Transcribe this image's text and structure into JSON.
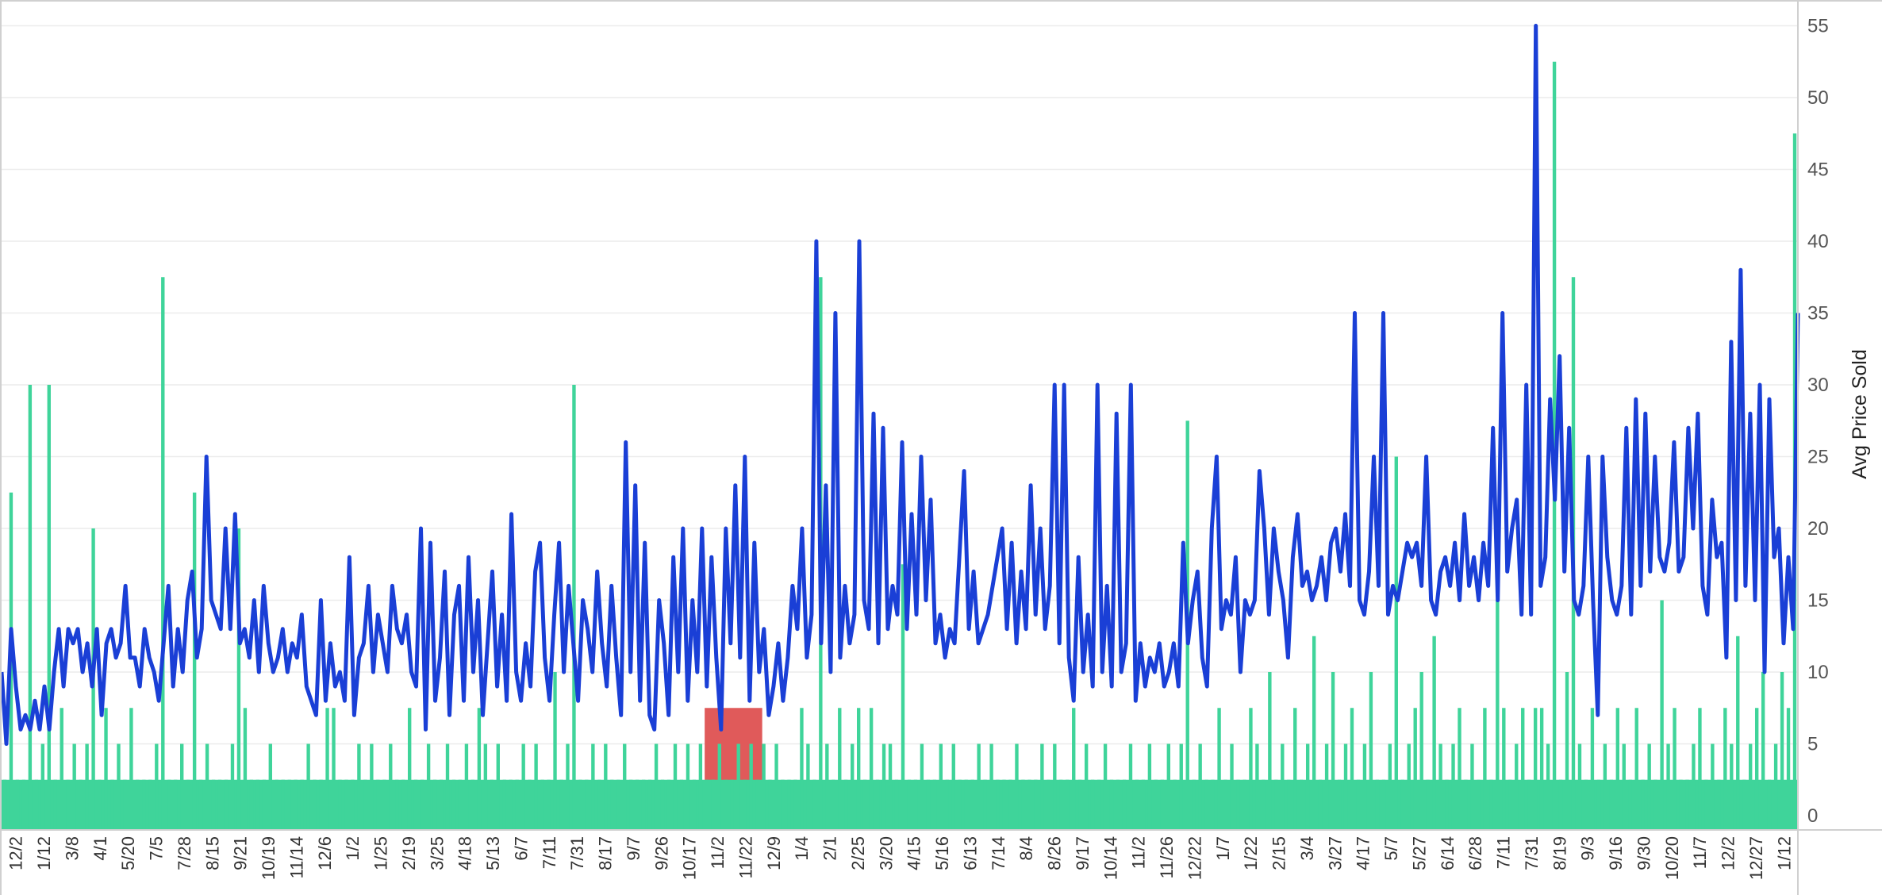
{
  "chart_data": {
    "type": "bar",
    "title": "",
    "xlabel": "",
    "ylabel": "Avg Price Sold",
    "ylim": [
      0,
      57
    ],
    "yticks": [
      0,
      5,
      10,
      15,
      20,
      25,
      30,
      35,
      40,
      45,
      50,
      55
    ],
    "grid": true,
    "legend": "none",
    "colors": {
      "line": "#1a3fd6",
      "bars": "#3fd49a",
      "highlight": "#e05a5a",
      "grid": "#ececec",
      "axis": "#d0d0d0"
    },
    "x_tick_labels": [
      "12/2",
      "1/12",
      "3/8",
      "4/1",
      "5/20",
      "7/5",
      "7/28",
      "8/15",
      "9/21",
      "10/19",
      "11/14",
      "12/6",
      "1/2",
      "1/25",
      "2/19",
      "3/25",
      "4/18",
      "5/13",
      "6/7",
      "7/11",
      "7/31",
      "8/17",
      "9/7",
      "9/26",
      "10/17",
      "11/2",
      "11/22",
      "12/9",
      "1/4",
      "2/1",
      "2/25",
      "3/20",
      "4/15",
      "5/16",
      "6/13",
      "7/14",
      "8/4",
      "8/26",
      "9/17",
      "10/14",
      "11/2",
      "11/26",
      "12/22",
      "1/7",
      "1/22",
      "2/15",
      "3/4",
      "3/27",
      "4/17",
      "5/7",
      "5/27",
      "6/14",
      "6/28",
      "7/11",
      "7/31",
      "8/19",
      "9/3",
      "9/16",
      "9/30",
      "10/20",
      "11/7",
      "12/2",
      "12/27",
      "1/12"
    ],
    "highlight_range": {
      "from_label": "11/2",
      "to_label": "11/22"
    },
    "series": [
      {
        "type": "line",
        "values": [
          10,
          5,
          13,
          9,
          6,
          7,
          6,
          8,
          6,
          9,
          6,
          10,
          13,
          9,
          13,
          12,
          13,
          10,
          12,
          9,
          13,
          7,
          12,
          13,
          11,
          12,
          16,
          11,
          11,
          9,
          13,
          11,
          10,
          8,
          12,
          16,
          9,
          13,
          10,
          15,
          17,
          11,
          13,
          25,
          15,
          14,
          13,
          20,
          13,
          21,
          12,
          13,
          11,
          15,
          10,
          16,
          12,
          10,
          11,
          13,
          10,
          12,
          11,
          14,
          9,
          8,
          7,
          15,
          8,
          12,
          9,
          10,
          8,
          18,
          7,
          11,
          12,
          16,
          10,
          14,
          12,
          10,
          16,
          13,
          12,
          14,
          10,
          9,
          20,
          6,
          19,
          8,
          11,
          17,
          7,
          14,
          16,
          8,
          18,
          10,
          15,
          7,
          12,
          17,
          9,
          14,
          8,
          21,
          10,
          8,
          12,
          9,
          17,
          19,
          11,
          8,
          14,
          19,
          10,
          16,
          12,
          8,
          15,
          13,
          10,
          17,
          12,
          9,
          16,
          11,
          7,
          26,
          10,
          23,
          8,
          19,
          7,
          6,
          15,
          12,
          7,
          18,
          10,
          20,
          8,
          15,
          10,
          20,
          9,
          18,
          11,
          6,
          20,
          12,
          23,
          11,
          25,
          8,
          19,
          10,
          13,
          7,
          9,
          12,
          8,
          11,
          16,
          13,
          20,
          11,
          14,
          40,
          12,
          23,
          10,
          35,
          11,
          16,
          12,
          14,
          40,
          15,
          13,
          28,
          12,
          27,
          13,
          16,
          14,
          26,
          13,
          21,
          14,
          25,
          15,
          22,
          12,
          14,
          11,
          13,
          12,
          18,
          24,
          13,
          17,
          12,
          13,
          14,
          16,
          18,
          20,
          13,
          19,
          12,
          17,
          13,
          23,
          14,
          20,
          13,
          16,
          30,
          12,
          30,
          11,
          8,
          18,
          10,
          14,
          9,
          30,
          10,
          16,
          9,
          28,
          10,
          12,
          30,
          8,
          12,
          9,
          11,
          10,
          12,
          9,
          10,
          12,
          9,
          19,
          12,
          15,
          17,
          11,
          9,
          20,
          25,
          13,
          15,
          14,
          18,
          10,
          15,
          14,
          15,
          24,
          20,
          14,
          20,
          17,
          15,
          11,
          18,
          21,
          16,
          17,
          15,
          16,
          18,
          15,
          19,
          20,
          17,
          21,
          16,
          35,
          15,
          14,
          17,
          25,
          16,
          35,
          14,
          16,
          15,
          17,
          19,
          18,
          19,
          16,
          25,
          15,
          14,
          17,
          18,
          16,
          19,
          15,
          21,
          16,
          18,
          15,
          19,
          16,
          27,
          15,
          35,
          17,
          20,
          22,
          14,
          30,
          14,
          55,
          16,
          18,
          29,
          22,
          32,
          17,
          27,
          15,
          14,
          16,
          25,
          15,
          7,
          25,
          18,
          15,
          14,
          16,
          27,
          14,
          29,
          16,
          28,
          17,
          25,
          18,
          17,
          19,
          26,
          17,
          18,
          27,
          20,
          28,
          16,
          14,
          22,
          18,
          19,
          11,
          33,
          15,
          38,
          16,
          28,
          15,
          30,
          10,
          29,
          18,
          20,
          12,
          18,
          13,
          35
        ]
      },
      {
        "type": "bar",
        "values": [
          2.5,
          22.5,
          2.5,
          2.5,
          30,
          2.5,
          5,
          30,
          2.5,
          7.5,
          2.5,
          5,
          2.5,
          5,
          20,
          2.5,
          7.5,
          2.5,
          5,
          2.5,
          7.5,
          2.5,
          2.5,
          2.5,
          5,
          37.5,
          2.5,
          2.5,
          5,
          2.5,
          22.5,
          2.5,
          5,
          2.5,
          2.5,
          2.5,
          5,
          20,
          7.5,
          2.5,
          2.5,
          2.5,
          5,
          2.5,
          2.5,
          2.5,
          2.5,
          2.5,
          5,
          2.5,
          2.5,
          7.5,
          7.5,
          2.5,
          2.5,
          2.5,
          5,
          2.5,
          5,
          2.5,
          2.5,
          5,
          2.5,
          2.5,
          7.5,
          2.5,
          2.5,
          5,
          2.5,
          2.5,
          5,
          2.5,
          2.5,
          5,
          2.5,
          7.5,
          5,
          2.5,
          5,
          2.5,
          2.5,
          2.5,
          5,
          2.5,
          5,
          2.5,
          2.5,
          10,
          2.5,
          5,
          30,
          2.5,
          2.5,
          5,
          2.5,
          5,
          2.5,
          2.5,
          5,
          2.5,
          2.5,
          2.5,
          2.5,
          5,
          2.5,
          2.5,
          5,
          2.5,
          5,
          2.5,
          5,
          2.5,
          2.5,
          5,
          2.5,
          2.5,
          5,
          2.5,
          5,
          2.5,
          5,
          2.5,
          5,
          2.5,
          2.5,
          2.5,
          7.5,
          5,
          2.5,
          37.5,
          5,
          2.5,
          7.5,
          2.5,
          5,
          7.5,
          2.5,
          7.5,
          2.5,
          5,
          5,
          2.5,
          17.5,
          2.5,
          2.5,
          5,
          2.5,
          2.5,
          5,
          2.5,
          5,
          2.5,
          2.5,
          2.5,
          5,
          2.5,
          5,
          2.5,
          2.5,
          2.5,
          5,
          2.5,
          2.5,
          2.5,
          5,
          2.5,
          5,
          2.5,
          2.5,
          7.5,
          2.5,
          5,
          2.5,
          2.5,
          5,
          2.5,
          2.5,
          2.5,
          5,
          2.5,
          2.5,
          5,
          2.5,
          2.5,
          5,
          2.5,
          5,
          27.5,
          2.5,
          5,
          2.5,
          2.5,
          7.5,
          2.5,
          5,
          2.5,
          2.5,
          7.5,
          5,
          2.5,
          10,
          2.5,
          5,
          2.5,
          7.5,
          2.5,
          5,
          12.5,
          2.5,
          5,
          10,
          2.5,
          5,
          7.5,
          2.5,
          5,
          10,
          2.5,
          2.5,
          5,
          25,
          2.5,
          5,
          7.5,
          10,
          2.5,
          12.5,
          5,
          2.5,
          5,
          7.5,
          2.5,
          5,
          2.5,
          7.5,
          2.5,
          15,
          7.5,
          2.5,
          5,
          7.5,
          2.5,
          7.5,
          7.5,
          5,
          52.5,
          2.5,
          10,
          37.5,
          5,
          2.5,
          7.5,
          2.5,
          5,
          2.5,
          7.5,
          5,
          2.5,
          7.5,
          2.5,
          5,
          2.5,
          15,
          5,
          7.5,
          2.5,
          2.5,
          5,
          7.5,
          2.5,
          5,
          2.5,
          7.5,
          5,
          12.5,
          2.5,
          5,
          7.5,
          10,
          2.5,
          5,
          10,
          7.5,
          47.5
        ]
      }
    ]
  }
}
